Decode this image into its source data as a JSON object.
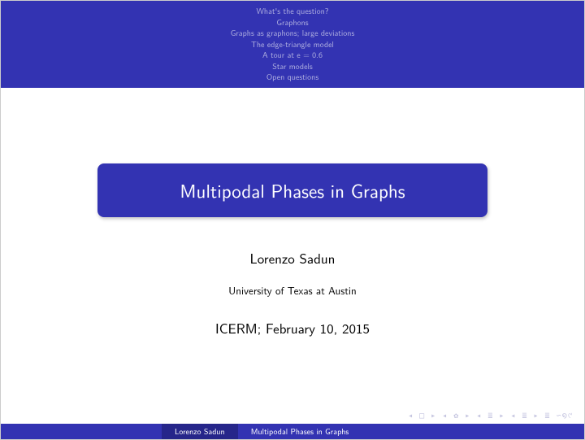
{
  "colors": {
    "beamer_blue": "#3333b2",
    "beamer_blue_dark": "#26268a",
    "outline_text": "#b0b0e0",
    "nav_symbol": "#c5c5e0",
    "background": "#ffffff",
    "text": "#000000"
  },
  "header": {
    "outline": [
      "What's the question?",
      "Graphons",
      "Graphs as graphons; large deviations",
      "The edge-triangle model",
      "A tour at e = 0.6",
      "Star models",
      "Open questions"
    ]
  },
  "title": "Multipodal Phases in Graphs",
  "author": "Lorenzo Sadun",
  "affiliation": "University of Texas at Austin",
  "venue": "ICERM; February 10, 2015",
  "footer": {
    "author": "Lorenzo Sadun",
    "title": "Multipodal Phases in Graphs"
  },
  "nav_symbols": "◂ □ ▸   ◂ ✿ ▸   ◂ ≣ ▸   ◂ ≣ ▸   ≣   ∽໑୯"
}
